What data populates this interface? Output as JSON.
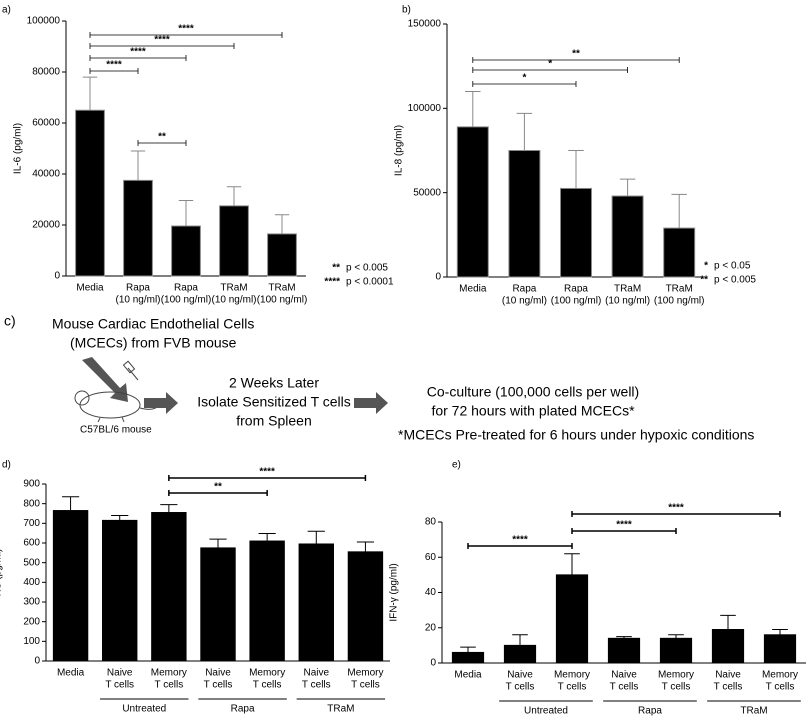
{
  "chart_data": [
    {
      "type": "bar",
      "label": "a)",
      "y_label": "IL-6 (pg/ml)",
      "categories": [
        [
          "Media"
        ],
        [
          "Rapa",
          "(10 ng/ml)"
        ],
        [
          "Rapa",
          "(100 ng/ml)"
        ],
        [
          "TRaM",
          "(10 ng/ml)"
        ],
        [
          "TRaM",
          "(100 ng/ml)"
        ]
      ],
      "values": [
        65000,
        37500,
        19600,
        27500,
        16500
      ],
      "errors": [
        13000,
        11500,
        10000,
        7500,
        7500
      ],
      "color": "#000000",
      "ylim": [
        0,
        100000
      ],
      "yticks": [
        0,
        20000,
        40000,
        60000,
        80000,
        100000
      ],
      "brackets": [
        {
          "pair": [
            0,
            1
          ],
          "label": "****"
        },
        {
          "pair": [
            0,
            2
          ],
          "label": "****"
        },
        {
          "pair": [
            0,
            3
          ],
          "label": "****"
        },
        {
          "pair": [
            0,
            4
          ],
          "label": "****"
        },
        {
          "pair": [
            1,
            2
          ],
          "label": "**"
        }
      ],
      "notes": [
        {
          "stars": "**",
          "text": "p < 0.005"
        },
        {
          "stars": "****",
          "text": "p < 0.0001"
        }
      ]
    },
    {
      "type": "bar",
      "label": "b)",
      "y_label": "IL-8 (pg/ml)",
      "categories": [
        [
          "Media"
        ],
        [
          "Rapa",
          "(10 ng/ml)"
        ],
        [
          "Rapa",
          "(100 ng/ml)"
        ],
        [
          "TRaM",
          "(10 ng/ml)"
        ],
        [
          "TRaM",
          "(100 ng/ml)"
        ]
      ],
      "values": [
        89000,
        75000,
        52500,
        48000,
        29000
      ],
      "errors": [
        21000,
        22000,
        22500,
        10000,
        20000
      ],
      "color": "#000000",
      "ylim": [
        0,
        150000
      ],
      "yticks": [
        0,
        50000,
        100000,
        150000
      ],
      "brackets": [
        {
          "pair": [
            0,
            2
          ],
          "label": "*"
        },
        {
          "pair": [
            0,
            3
          ],
          "label": "*"
        },
        {
          "pair": [
            0,
            4
          ],
          "label": "**"
        }
      ],
      "notes": [
        {
          "stars": "*",
          "text": "p < 0.05"
        },
        {
          "stars": "**",
          "text": "p < 0.005"
        }
      ]
    },
    {
      "type": "bar",
      "label": "d)",
      "y_label": "KC (pg/ml)",
      "categories": [
        [
          "Media"
        ],
        [
          "Naive",
          "T cells"
        ],
        [
          "Memory",
          "T cells"
        ],
        [
          "Naive",
          "T cells"
        ],
        [
          "Memory",
          "T cells"
        ],
        [
          "Naive",
          "T cells"
        ],
        [
          "Memory",
          "T cells"
        ]
      ],
      "values": [
        765,
        715,
        755,
        575,
        610,
        595,
        555
      ],
      "errors": [
        70,
        25,
        40,
        45,
        38,
        65,
        50
      ],
      "color": "#000000",
      "ylim": [
        0,
        900
      ],
      "yticks": [
        0,
        100,
        200,
        300,
        400,
        500,
        600,
        700,
        800,
        900
      ],
      "groups": [
        {
          "name": "Untreated",
          "span": [
            1,
            2
          ]
        },
        {
          "name": "Rapa",
          "span": [
            3,
            4
          ]
        },
        {
          "name": "TRaM",
          "span": [
            5,
            6
          ]
        }
      ],
      "brackets": [
        {
          "pair": [
            2,
            4
          ],
          "label": "**"
        },
        {
          "pair": [
            2,
            6
          ],
          "label": "****"
        }
      ]
    },
    {
      "type": "bar",
      "label": "e)",
      "y_label": "IFN-γ (pg/ml)",
      "categories": [
        [
          "Media"
        ],
        [
          "Naive",
          "T cells"
        ],
        [
          "Memory",
          "T cells"
        ],
        [
          "Naive",
          "T cells"
        ],
        [
          "Memory",
          "T cells"
        ],
        [
          "Naive",
          "T cells"
        ],
        [
          "Memory",
          "T cells"
        ]
      ],
      "values": [
        6,
        10,
        50,
        14,
        14,
        19,
        16
      ],
      "errors": [
        3,
        6,
        12,
        1,
        2,
        8,
        3
      ],
      "color": "#000000",
      "ylim": [
        0,
        80
      ],
      "yticks": [
        0,
        20,
        40,
        60,
        80
      ],
      "groups": [
        {
          "name": "Untreated",
          "span": [
            1,
            2
          ]
        },
        {
          "name": "Rapa",
          "span": [
            3,
            4
          ]
        },
        {
          "name": "TRaM",
          "span": [
            5,
            6
          ]
        }
      ],
      "brackets": [
        {
          "pair": [
            0,
            2
          ],
          "label": "****"
        },
        {
          "pair": [
            2,
            4
          ],
          "label": "****"
        },
        {
          "pair": [
            2,
            6
          ],
          "label": "****"
        }
      ]
    }
  ],
  "schematic": {
    "label": "c)",
    "source": [
      "Mouse Cardiac Endothelial Cells",
      "(MCECs) from FVB mouse"
    ],
    "mouse": "C57BL/6 mouse",
    "step2": [
      "2 Weeks Later",
      "Isolate Sensitized T cells",
      "from Spleen"
    ],
    "step3": [
      "Co-culture (100,000 cells per well)",
      "for 72 hours with plated MCECs*"
    ],
    "footnote": "*MCECs Pre-treated for 6 hours under hypoxic conditions"
  }
}
